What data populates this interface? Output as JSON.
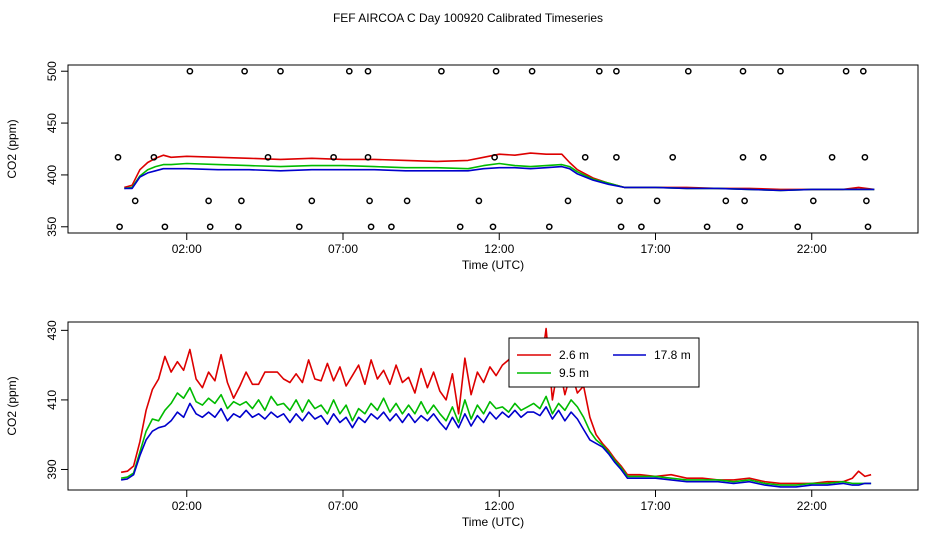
{
  "chart_data": [
    {
      "type": "line",
      "title": "FEF AIRCOA C  Day 100920  Calibrated Timeseries",
      "xlabel": "Time (UTC)",
      "ylabel": "CO2 (ppm)",
      "xlim": [
        -1.8,
        25.4
      ],
      "ylim": [
        344,
        506
      ],
      "x_ticks": [
        2,
        7,
        12,
        17,
        22
      ],
      "x_tick_labels": [
        "02:00",
        "07:00",
        "12:00",
        "17:00",
        "22:00"
      ],
      "y_ticks": [
        350,
        400,
        450,
        500
      ],
      "y_tick_labels": [
        "350",
        "400",
        "450",
        "500"
      ],
      "grid": false,
      "colors": {
        "2.6 m": "#dd0000",
        "9.5 m": "#00bb00",
        "17.8 m": "#0000cc",
        "markers": "#000000"
      },
      "series": [
        {
          "name": "2.6 m",
          "x": [
            0,
            0.25,
            0.5,
            0.75,
            1.0,
            1.25,
            1.5,
            2,
            3,
            4,
            5,
            6,
            7,
            8,
            9,
            10,
            11,
            11.5,
            12,
            12.5,
            13,
            13.5,
            14,
            14.25,
            14.5,
            15,
            15.5,
            16,
            17,
            18,
            19,
            20,
            21,
            22,
            23,
            23.5,
            24
          ],
          "values": [
            388,
            390,
            405,
            412,
            416,
            419,
            417,
            418,
            417,
            416,
            415,
            416,
            415,
            415,
            414,
            413,
            414,
            417,
            420,
            419,
            421,
            420,
            420,
            412,
            405,
            397,
            392,
            388,
            388,
            388,
            387,
            387,
            386,
            386,
            386,
            388,
            386
          ]
        },
        {
          "name": "9.5 m",
          "x": [
            0,
            0.25,
            0.5,
            0.75,
            1.0,
            1.25,
            1.5,
            2,
            3,
            4,
            5,
            6,
            7,
            8,
            9,
            10,
            11,
            11.5,
            12,
            12.5,
            13,
            13.5,
            14,
            14.25,
            14.5,
            15,
            15.5,
            16,
            17,
            18,
            19,
            20,
            21,
            22,
            23,
            23.5,
            24
          ],
          "values": [
            387,
            388,
            399,
            405,
            408,
            410,
            410,
            411,
            410,
            409,
            408,
            409,
            409,
            408,
            407,
            407,
            406,
            409,
            411,
            409,
            408,
            409,
            410,
            408,
            403,
            396,
            392,
            388,
            388,
            387,
            387,
            386,
            385,
            386,
            386,
            386,
            386
          ]
        },
        {
          "name": "17.8 m",
          "x": [
            0,
            0.25,
            0.5,
            0.75,
            1.0,
            1.25,
            1.5,
            2,
            3,
            4,
            5,
            6,
            7,
            8,
            9,
            10,
            11,
            11.5,
            12,
            12.5,
            13,
            13.5,
            14,
            14.25,
            14.5,
            15,
            15.5,
            16,
            17,
            18,
            19,
            20,
            21,
            22,
            23,
            23.5,
            24
          ],
          "values": [
            387,
            387,
            398,
            402,
            404,
            406,
            406,
            406,
            405,
            405,
            404,
            405,
            405,
            405,
            404,
            404,
            404,
            406,
            407,
            407,
            406,
            407,
            408,
            406,
            401,
            395,
            391,
            388,
            388,
            387,
            387,
            386,
            385,
            386,
            386,
            386,
            386
          ]
        }
      ],
      "markers": {
        "x": [
          2.1,
          3.85,
          5.0,
          7.2,
          7.8,
          10.15,
          11.9,
          13.05,
          15.2,
          15.75,
          18.05,
          19.8,
          21.0,
          23.1,
          23.65,
          -0.2,
          0.95,
          4.6,
          6.7,
          7.8,
          11.85,
          14.75,
          15.75,
          17.55,
          19.8,
          20.45,
          22.65,
          23.7,
          0.35,
          2.7,
          3.75,
          6.0,
          7.85,
          9.05,
          11.35,
          14.2,
          15.85,
          17.05,
          19.25,
          19.85,
          22.05,
          23.75,
          -0.15,
          1.3,
          2.75,
          3.65,
          5.6,
          7.9,
          8.55,
          10.75,
          11.8,
          13.6,
          15.9,
          16.55,
          18.65,
          19.7,
          21.55,
          23.8
        ],
        "values": [
          500,
          500,
          500,
          500,
          500,
          500,
          500,
          500,
          500,
          500,
          500,
          500,
          500,
          500,
          500,
          417,
          417,
          417,
          417,
          417,
          417,
          417,
          417,
          417,
          417,
          417,
          417,
          417,
          375,
          375,
          375,
          375,
          375,
          375,
          375,
          375,
          375,
          375,
          375,
          375,
          375,
          375,
          350,
          350,
          350,
          350,
          350,
          350,
          350,
          350,
          350,
          350,
          350,
          350,
          350,
          350,
          350,
          350
        ]
      }
    },
    {
      "type": "line",
      "title": "",
      "xlabel": "Time (UTC)",
      "ylabel": "CO2 (ppm)",
      "xlim": [
        -1.8,
        25.4
      ],
      "ylim": [
        384.1,
        432.4
      ],
      "x_ticks": [
        2,
        7,
        12,
        17,
        22
      ],
      "x_tick_labels": [
        "02:00",
        "07:00",
        "12:00",
        "17:00",
        "22:00"
      ],
      "y_ticks": [
        390,
        410,
        430
      ],
      "y_tick_labels": [
        "390",
        "410",
        "430"
      ],
      "grid": false,
      "legend": {
        "placement": "top-right",
        "entries": [
          {
            "name": "2.6 m",
            "color": "#dd0000"
          },
          {
            "name": "17.8 m",
            "color": "#0000cc"
          },
          {
            "name": "9.5 m",
            "color": "#00bb00"
          }
        ]
      },
      "series": [
        {
          "name": "2.6 m",
          "x": [
            -0.1,
            0.1,
            0.3,
            0.5,
            0.7,
            0.9,
            1.1,
            1.3,
            1.5,
            1.7,
            1.9,
            2.1,
            2.3,
            2.5,
            2.7,
            2.9,
            3.1,
            3.3,
            3.5,
            3.7,
            3.9,
            4.1,
            4.3,
            4.5,
            4.7,
            4.9,
            5.1,
            5.3,
            5.5,
            5.7,
            5.9,
            6.1,
            6.3,
            6.5,
            6.7,
            6.9,
            7.1,
            7.3,
            7.5,
            7.7,
            7.9,
            8.1,
            8.3,
            8.5,
            8.7,
            8.9,
            9.1,
            9.3,
            9.5,
            9.7,
            9.9,
            10.1,
            10.3,
            10.5,
            10.7,
            10.9,
            11.1,
            11.3,
            11.5,
            11.7,
            11.9,
            12.1,
            12.3,
            12.5,
            12.7,
            12.9,
            13.1,
            13.3,
            13.5,
            13.7,
            13.9,
            14.1,
            14.3,
            14.5,
            14.7,
            14.9,
            15.1,
            15.3,
            15.5,
            15.7,
            15.9,
            16.1,
            16.5,
            17.0,
            17.5,
            18.0,
            18.5,
            19.0,
            19.5,
            20.0,
            20.5,
            21.0,
            21.5,
            22.0,
            22.5,
            23.0,
            23.3,
            23.5,
            23.7,
            23.9
          ],
          "values": [
            389.2,
            389.5,
            391.0,
            398.0,
            407.0,
            413.0,
            416.0,
            422.5,
            418.0,
            421.0,
            418.5,
            424.5,
            416.0,
            413.5,
            418.0,
            415.5,
            423.0,
            415.0,
            410.5,
            414.0,
            418.0,
            414.5,
            414.5,
            418.0,
            418.0,
            418.0,
            416.0,
            415.0,
            417.5,
            415.0,
            421.5,
            416.0,
            415.5,
            420.5,
            415.5,
            419.5,
            414.0,
            417.0,
            420.0,
            414.5,
            421.5,
            416.0,
            418.5,
            414.5,
            420.0,
            415.0,
            416.5,
            412.0,
            419.0,
            413.5,
            418.0,
            412.5,
            410.0,
            417.5,
            406.0,
            422.0,
            411.5,
            418.0,
            415.0,
            419.5,
            417.0,
            420.0,
            421.5,
            424.0,
            418.0,
            421.0,
            427.0,
            417.0,
            430.5,
            410.0,
            420.5,
            411.5,
            418.0,
            412.0,
            414.0,
            405.0,
            400.0,
            397.5,
            395.5,
            393.0,
            391.0,
            388.5,
            388.5,
            388.0,
            388.5,
            387.5,
            387.5,
            387.0,
            387.0,
            387.5,
            386.5,
            386.0,
            386.0,
            386.0,
            386.5,
            386.5,
            387.5,
            389.5,
            388.0,
            388.5
          ]
        },
        {
          "name": "9.5 m",
          "x": [
            -0.1,
            0.1,
            0.3,
            0.5,
            0.7,
            0.9,
            1.1,
            1.3,
            1.5,
            1.7,
            1.9,
            2.1,
            2.3,
            2.5,
            2.7,
            2.9,
            3.1,
            3.3,
            3.5,
            3.7,
            3.9,
            4.1,
            4.3,
            4.5,
            4.7,
            4.9,
            5.1,
            5.3,
            5.5,
            5.7,
            5.9,
            6.1,
            6.3,
            6.5,
            6.7,
            6.9,
            7.1,
            7.3,
            7.5,
            7.7,
            7.9,
            8.1,
            8.3,
            8.5,
            8.7,
            8.9,
            9.1,
            9.3,
            9.5,
            9.7,
            9.9,
            10.1,
            10.3,
            10.5,
            10.7,
            10.9,
            11.1,
            11.3,
            11.5,
            11.7,
            11.9,
            12.1,
            12.3,
            12.5,
            12.7,
            12.9,
            13.1,
            13.3,
            13.5,
            13.7,
            13.9,
            14.1,
            14.3,
            14.5,
            14.7,
            14.9,
            15.1,
            15.3,
            15.5,
            15.7,
            15.9,
            16.1,
            16.5,
            17.0,
            17.5,
            18.0,
            18.5,
            19.0,
            19.5,
            20.0,
            20.5,
            21.0,
            21.5,
            22.0,
            22.5,
            23.0,
            23.3,
            23.5,
            23.7,
            23.9
          ],
          "values": [
            387.5,
            387.8,
            389.0,
            395.0,
            401.0,
            404.5,
            404.0,
            407.0,
            409.0,
            412.0,
            410.5,
            413.5,
            409.5,
            408.5,
            410.5,
            409.0,
            411.5,
            407.5,
            409.5,
            408.5,
            409.5,
            407.5,
            410.0,
            407.0,
            411.0,
            408.5,
            409.0,
            407.0,
            410.0,
            406.5,
            410.0,
            407.5,
            408.5,
            406.0,
            410.0,
            406.0,
            408.5,
            404.0,
            407.5,
            406.0,
            409.0,
            407.0,
            410.5,
            406.5,
            409.0,
            406.0,
            408.5,
            406.0,
            409.5,
            406.0,
            408.5,
            406.0,
            404.0,
            408.0,
            403.5,
            410.0,
            404.5,
            408.5,
            406.0,
            409.5,
            407.5,
            408.0,
            406.5,
            409.0,
            407.0,
            408.0,
            409.0,
            407.5,
            411.0,
            406.0,
            409.0,
            407.0,
            410.0,
            408.0,
            405.0,
            401.0,
            398.5,
            397.0,
            395.0,
            392.5,
            390.5,
            388.0,
            388.0,
            388.0,
            387.5,
            387.0,
            387.0,
            387.0,
            386.5,
            387.0,
            386.0,
            385.5,
            385.5,
            386.0,
            386.0,
            386.5,
            386.0,
            386.0,
            386.0,
            386.0
          ]
        },
        {
          "name": "17.8 m",
          "x": [
            -0.1,
            0.1,
            0.3,
            0.5,
            0.7,
            0.9,
            1.1,
            1.3,
            1.5,
            1.7,
            1.9,
            2.1,
            2.3,
            2.5,
            2.7,
            2.9,
            3.1,
            3.3,
            3.5,
            3.7,
            3.9,
            4.1,
            4.3,
            4.5,
            4.7,
            4.9,
            5.1,
            5.3,
            5.5,
            5.7,
            5.9,
            6.1,
            6.3,
            6.5,
            6.7,
            6.9,
            7.1,
            7.3,
            7.5,
            7.7,
            7.9,
            8.1,
            8.3,
            8.5,
            8.7,
            8.9,
            9.1,
            9.3,
            9.5,
            9.7,
            9.9,
            10.1,
            10.3,
            10.5,
            10.7,
            10.9,
            11.1,
            11.3,
            11.5,
            11.7,
            11.9,
            12.1,
            12.3,
            12.5,
            12.7,
            12.9,
            13.1,
            13.3,
            13.5,
            13.7,
            13.9,
            14.1,
            14.3,
            14.5,
            14.7,
            14.9,
            15.1,
            15.3,
            15.5,
            15.7,
            15.9,
            16.1,
            16.5,
            17.0,
            17.5,
            18.0,
            18.5,
            19.0,
            19.5,
            20.0,
            20.5,
            21.0,
            21.5,
            22.0,
            22.5,
            23.0,
            23.3,
            23.5,
            23.7,
            23.9
          ],
          "values": [
            387.0,
            387.3,
            388.5,
            394.0,
            398.5,
            401.0,
            402.0,
            402.5,
            404.0,
            406.5,
            405.0,
            409.0,
            406.0,
            405.0,
            406.5,
            405.0,
            407.5,
            404.0,
            406.0,
            405.0,
            407.0,
            405.0,
            406.0,
            404.5,
            406.5,
            405.0,
            406.0,
            403.5,
            406.0,
            404.0,
            406.5,
            404.5,
            405.5,
            403.0,
            406.0,
            403.5,
            405.0,
            402.0,
            405.0,
            403.5,
            406.0,
            404.5,
            406.5,
            404.0,
            406.0,
            403.5,
            406.0,
            403.5,
            405.5,
            404.0,
            406.0,
            403.5,
            401.5,
            405.0,
            402.0,
            406.0,
            402.5,
            405.5,
            403.5,
            406.5,
            404.5,
            406.5,
            405.0,
            407.0,
            405.0,
            406.5,
            406.5,
            405.5,
            408.0,
            404.5,
            407.0,
            404.0,
            406.5,
            404.5,
            401.5,
            398.5,
            397.5,
            396.5,
            394.5,
            392.0,
            390.0,
            387.5,
            387.5,
            387.5,
            387.0,
            386.5,
            386.5,
            386.5,
            386.0,
            386.5,
            385.5,
            385.0,
            385.0,
            385.5,
            385.5,
            386.0,
            385.5,
            385.5,
            386.0,
            386.0
          ]
        }
      ]
    }
  ]
}
